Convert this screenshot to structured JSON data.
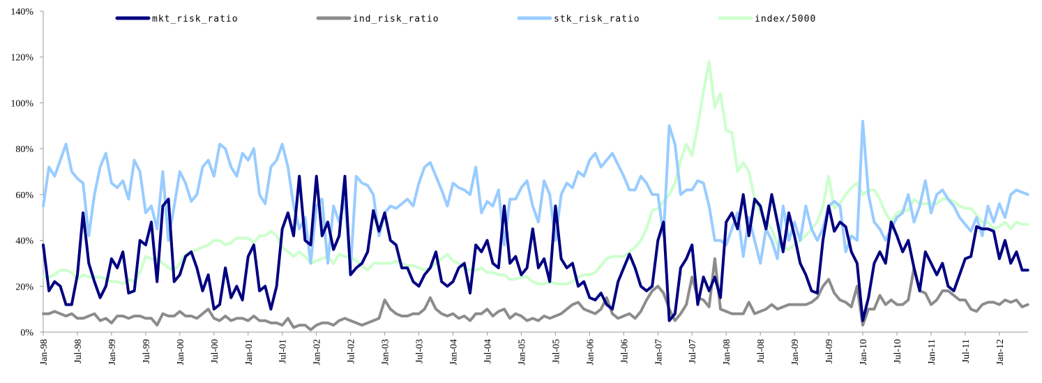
{
  "chart_data": {
    "type": "line",
    "title": "",
    "xlabel": "",
    "ylabel": "",
    "ylim": [
      0,
      140
    ],
    "y_ticks": [
      "0%",
      "20%",
      "40%",
      "60%",
      "80%",
      "100%",
      "120%",
      "140%"
    ],
    "x_start": "Jan-98",
    "x_frequency": "monthly",
    "x_ticks": [
      "Jan-98",
      "Jul-98",
      "Jan-99",
      "Jul-99",
      "Jan-00",
      "Jul-00",
      "Jan-01",
      "Jul-01",
      "Jan-02",
      "Jul-02",
      "Jan-03",
      "Jul-03",
      "Jan-04",
      "Jul-04",
      "Jan-05",
      "Jul-05",
      "Jan-06",
      "Jul-06",
      "Jan-07",
      "Jul-07",
      "Jan-08",
      "Jul-08",
      "Jan-09",
      "Jul-09",
      "Jan-10",
      "Jul-10",
      "Jan-11",
      "Jul-11",
      "Jan-12"
    ],
    "grid": false,
    "legend_position": "top",
    "series": [
      {
        "name": "mkt_risk_ratio",
        "color": "#000080",
        "values": [
          38,
          18,
          22,
          20,
          12,
          12,
          25,
          52,
          30,
          22,
          15,
          20,
          32,
          28,
          35,
          17,
          18,
          40,
          38,
          48,
          22,
          55,
          58,
          22,
          25,
          33,
          35,
          28,
          18,
          25,
          10,
          12,
          28,
          15,
          20,
          14,
          33,
          38,
          18,
          20,
          10,
          20,
          45,
          52,
          42,
          68,
          40,
          38,
          68,
          42,
          48,
          36,
          42,
          68,
          25,
          28,
          30,
          35,
          53,
          44,
          52,
          40,
          38,
          28,
          28,
          22,
          20,
          25,
          28,
          35,
          22,
          20,
          22,
          28,
          30,
          17,
          38,
          35,
          40,
          30,
          28,
          55,
          30,
          33,
          25,
          28,
          45,
          28,
          32,
          22,
          55,
          32,
          28,
          30,
          20,
          22,
          15,
          14,
          17,
          12,
          10,
          22,
          28,
          34,
          28,
          20,
          18,
          20,
          40,
          48,
          5,
          8,
          28,
          32,
          38,
          12,
          24,
          18,
          24,
          15,
          48,
          52,
          45,
          60,
          42,
          58,
          55,
          45,
          60,
          48,
          35,
          52,
          42,
          30,
          25,
          18,
          17,
          40,
          55,
          44,
          48,
          46,
          35,
          30,
          5,
          15,
          30,
          35,
          30,
          48,
          42,
          35,
          40,
          28,
          18,
          35,
          30,
          25,
          30,
          20,
          18,
          25,
          32,
          33,
          46,
          45,
          45,
          44,
          32,
          40,
          30,
          35,
          27,
          27
        ]
      },
      {
        "name": "ind_risk_ratio",
        "color": "#8c8c8c",
        "values": [
          8,
          8,
          9,
          8,
          7,
          8,
          6,
          6,
          7,
          8,
          5,
          6,
          4,
          7,
          7,
          6,
          7,
          7,
          6,
          6,
          3,
          8,
          7,
          7,
          9,
          7,
          7,
          6,
          8,
          10,
          6,
          5,
          7,
          5,
          6,
          6,
          5,
          7,
          5,
          5,
          4,
          4,
          3,
          6,
          2,
          3,
          3,
          1,
          3,
          4,
          4,
          3,
          5,
          6,
          5,
          4,
          3,
          4,
          5,
          6,
          14,
          10,
          8,
          7,
          7,
          8,
          8,
          10,
          15,
          10,
          8,
          7,
          8,
          6,
          7,
          5,
          8,
          8,
          10,
          7,
          9,
          10,
          6,
          8,
          7,
          5,
          6,
          5,
          7,
          6,
          7,
          8,
          10,
          12,
          13,
          10,
          9,
          8,
          10,
          15,
          8,
          6,
          7,
          8,
          6,
          9,
          14,
          18,
          20,
          17,
          10,
          5,
          8,
          12,
          24,
          15,
          14,
          11,
          32,
          10,
          9,
          8,
          8,
          8,
          13,
          8,
          9,
          10,
          12,
          10,
          11,
          12,
          12,
          12,
          12,
          13,
          15,
          20,
          23,
          17,
          14,
          13,
          11,
          20,
          3,
          10,
          10,
          16,
          12,
          14,
          12,
          12,
          14,
          28,
          18,
          17,
          12,
          14,
          18,
          18,
          16,
          14,
          14,
          10,
          9,
          12,
          13,
          13,
          12,
          14,
          13,
          14,
          11,
          12
        ]
      },
      {
        "name": "stk_risk_ratio",
        "color": "#99ccff",
        "values": [
          55,
          72,
          68,
          75,
          82,
          70,
          67,
          65,
          42,
          60,
          72,
          78,
          65,
          63,
          66,
          58,
          75,
          70,
          52,
          55,
          45,
          70,
          40,
          55,
          70,
          65,
          57,
          60,
          72,
          75,
          68,
          82,
          80,
          72,
          68,
          78,
          75,
          80,
          60,
          56,
          72,
          75,
          82,
          72,
          55,
          45,
          50,
          30,
          55,
          58,
          30,
          55,
          48,
          58,
          28,
          68,
          65,
          64,
          60,
          42,
          52,
          55,
          54,
          56,
          58,
          55,
          65,
          72,
          74,
          68,
          62,
          55,
          65,
          63,
          62,
          60,
          72,
          52,
          57,
          55,
          62,
          38,
          58,
          58,
          63,
          66,
          55,
          48,
          66,
          60,
          40,
          60,
          65,
          63,
          70,
          68,
          75,
          78,
          72,
          75,
          78,
          73,
          68,
          62,
          62,
          68,
          65,
          60,
          60,
          42,
          90,
          82,
          60,
          62,
          62,
          66,
          65,
          55,
          40,
          40,
          38,
          45,
          52,
          33,
          50,
          40,
          30,
          45,
          40,
          32,
          55,
          40,
          48,
          40,
          55,
          45,
          40,
          45,
          55,
          57,
          55,
          35,
          42,
          40,
          92,
          60,
          48,
          45,
          40,
          45,
          50,
          52,
          60,
          48,
          55,
          66,
          52,
          60,
          62,
          58,
          55,
          50,
          47,
          44,
          50,
          42,
          55,
          48,
          56,
          50,
          60,
          62,
          61,
          60
        ]
      },
      {
        "name": "index/5000",
        "color": "#ccffcc",
        "values": [
          24,
          24,
          25,
          27,
          27,
          26,
          23,
          25,
          24,
          24,
          24,
          23,
          22,
          22,
          21,
          23,
          22,
          26,
          33,
          32,
          32,
          30,
          28,
          27,
          30,
          34,
          35,
          36,
          37,
          38,
          40,
          40,
          38,
          39,
          41,
          41,
          41,
          39,
          42,
          42,
          44,
          42,
          37,
          35,
          33,
          35,
          33,
          30,
          31,
          32,
          33,
          30,
          34,
          33,
          33,
          31,
          29,
          27,
          30,
          30,
          30,
          30,
          31,
          30,
          29,
          29,
          28,
          27,
          28,
          30,
          32,
          34,
          31,
          30,
          28,
          27,
          27,
          28,
          26,
          26,
          25,
          25,
          23,
          23,
          24,
          24,
          22,
          21,
          21,
          22,
          21,
          21,
          21,
          22,
          24,
          25,
          25,
          26,
          29,
          32,
          33,
          33,
          33,
          35,
          37,
          40,
          45,
          53,
          54,
          57,
          60,
          65,
          75,
          82,
          77,
          90,
          105,
          118,
          98,
          104,
          88,
          87,
          70,
          74,
          70,
          58,
          52,
          48,
          45,
          38,
          37,
          36,
          38,
          40,
          42,
          45,
          48,
          55,
          68,
          54,
          56,
          60,
          63,
          65,
          60,
          62,
          62,
          58,
          52,
          48,
          52,
          53,
          53,
          58,
          56,
          56,
          56,
          56,
          58,
          58,
          57,
          55,
          54,
          54,
          51,
          48,
          48,
          45,
          46,
          48,
          45,
          48,
          47,
          47
        ]
      }
    ]
  }
}
